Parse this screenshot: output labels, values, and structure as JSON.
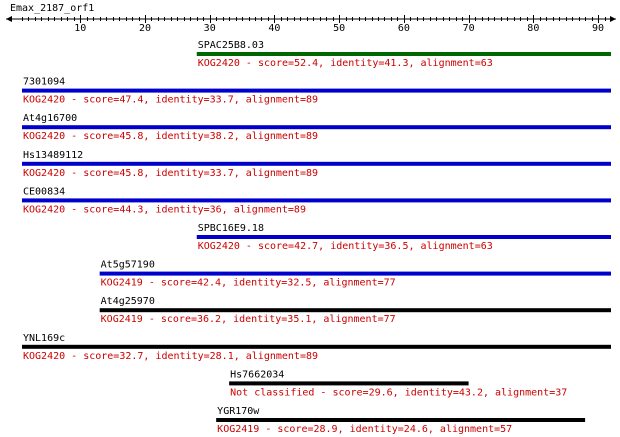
{
  "query": {
    "name": "Emax_2187_orf1",
    "length": 92
  },
  "axis": {
    "min": 1,
    "max": 92,
    "labeled_ticks": [
      10,
      20,
      30,
      40,
      50,
      60,
      70,
      80,
      90
    ]
  },
  "colors": {
    "green": "#006600",
    "blue": "#0000cc",
    "black": "#000000",
    "annotation": "#cc0000"
  },
  "hits": [
    {
      "id": "SPAC25B8.03",
      "annotation": "KOG2420 - score=52.4, identity=41.3, alignment=63",
      "start": 28,
      "end": 92,
      "color": "green"
    },
    {
      "id": "7301094",
      "annotation": "KOG2420 - score=47.4, identity=33.7, alignment=89",
      "start": 1,
      "end": 92,
      "color": "blue"
    },
    {
      "id": "At4g16700",
      "annotation": "KOG2420 - score=45.8, identity=38.2, alignment=89",
      "start": 1,
      "end": 92,
      "color": "blue"
    },
    {
      "id": "Hs13489112",
      "annotation": "KOG2420 - score=45.8, identity=33.7, alignment=89",
      "start": 1,
      "end": 92,
      "color": "blue"
    },
    {
      "id": "CE00834",
      "annotation": "KOG2420 - score=44.3, identity=36, alignment=89",
      "start": 1,
      "end": 92,
      "color": "blue"
    },
    {
      "id": "SPBC16E9.18",
      "annotation": "KOG2420 - score=42.7, identity=36.5, alignment=63",
      "start": 28,
      "end": 92,
      "color": "blue"
    },
    {
      "id": "At5g57190",
      "annotation": "KOG2419 - score=42.4, identity=32.5, alignment=77",
      "start": 13,
      "end": 92,
      "color": "blue"
    },
    {
      "id": "At4g25970",
      "annotation": "KOG2419 - score=36.2, identity=35.1, alignment=77",
      "start": 13,
      "end": 92,
      "color": "black"
    },
    {
      "id": "YNL169c",
      "annotation": "KOG2420 - score=32.7, identity=28.1, alignment=89",
      "start": 1,
      "end": 92,
      "color": "black"
    },
    {
      "id": "Hs7662034",
      "annotation": "Not classified - score=29.6, identity=43.2, alignment=37",
      "start": 33,
      "end": 70,
      "color": "black"
    },
    {
      "id": "YGR170w",
      "annotation": "KOG2419 - score=28.9, identity=24.6, alignment=57",
      "start": 31,
      "end": 88,
      "color": "black"
    }
  ]
}
